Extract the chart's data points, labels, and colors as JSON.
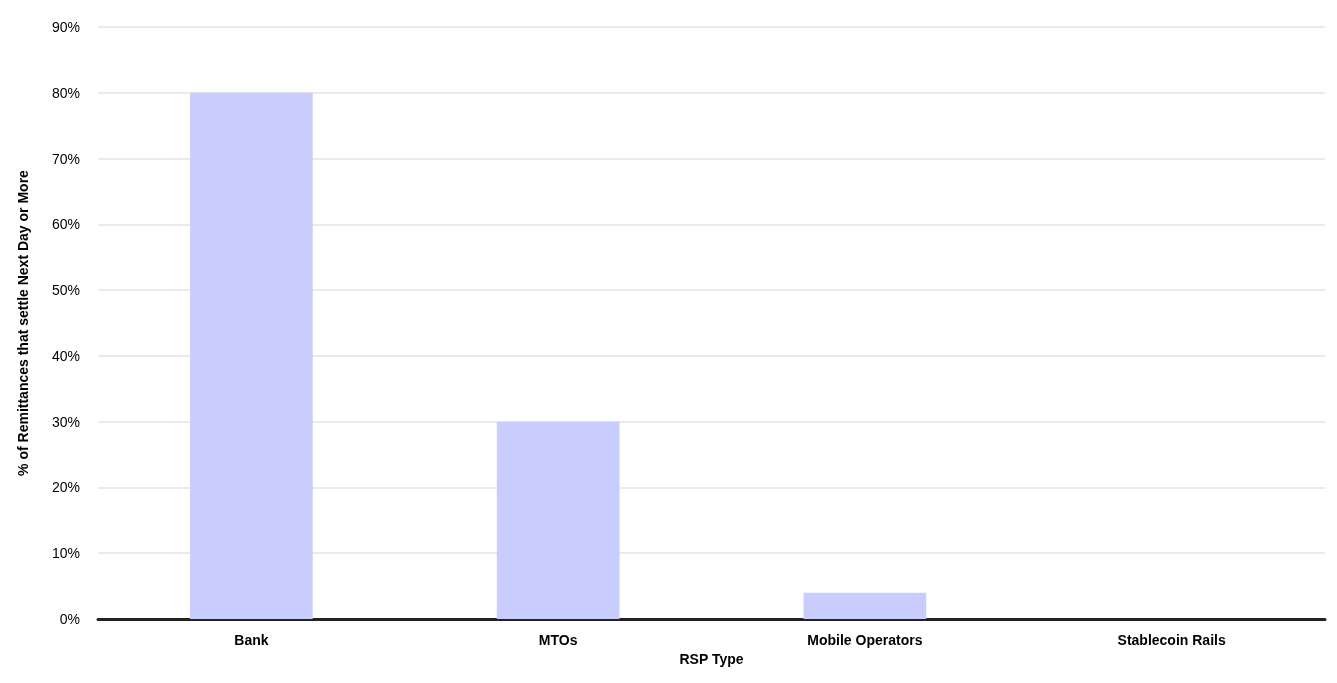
{
  "chart_data": {
    "type": "bar",
    "xlabel": "RSP Type",
    "ylabel": "% of Remittances that settle Next Day or More",
    "categories": [
      "Bank",
      "MTOs",
      "Mobile Operators",
      "Stablecoin Rails"
    ],
    "values": [
      80,
      30,
      4,
      0
    ],
    "color": "#c8cdfd",
    "ylim": [
      0,
      90
    ],
    "yticks": [
      {
        "value": 0,
        "label": "0%"
      },
      {
        "value": 10,
        "label": "10%"
      },
      {
        "value": 20,
        "label": "20%"
      },
      {
        "value": 30,
        "label": "30%"
      },
      {
        "value": 40,
        "label": "40%"
      },
      {
        "value": 50,
        "label": "50%"
      },
      {
        "value": 60,
        "label": "60%"
      },
      {
        "value": 70,
        "label": "70%"
      },
      {
        "value": 80,
        "label": "80%"
      },
      {
        "value": 90,
        "label": "90%"
      }
    ],
    "grid": "y"
  }
}
